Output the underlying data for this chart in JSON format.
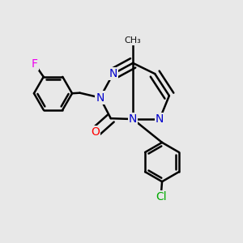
{
  "bg_color": "#e8e8e8",
  "bond_color": "#000000",
  "bond_width": 1.8,
  "atom_colors": {
    "N": "#0000cc",
    "O": "#ff0000",
    "F": "#ee00ee",
    "Cl": "#00aa00",
    "C": "#000000"
  },
  "font_size": 10,
  "dbo": 0.022
}
